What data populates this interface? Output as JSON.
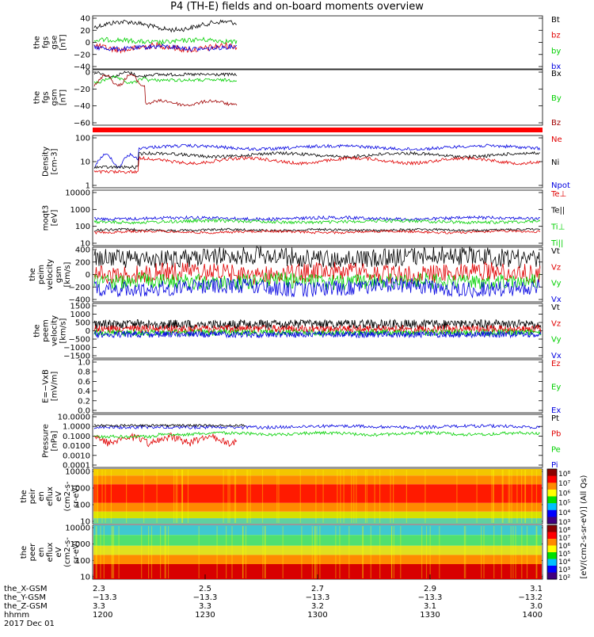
{
  "title": "P4 (TH-E) fields and on-board moments overview",
  "colors": {
    "black": "#000000",
    "red": "#e00000",
    "green": "#00d000",
    "blue": "#0000e0",
    "darkred": "#a00000"
  },
  "panels": [
    {
      "ylabel": [
        "the",
        "fgs",
        "gse",
        "[nT]"
      ],
      "ticks": [
        "40",
        "20",
        "0",
        "−20",
        "−40"
      ],
      "legend": [
        {
          "label": "Bt",
          "color": "#000000"
        },
        {
          "label": "bz",
          "color": "#e00000"
        },
        {
          "label": "by",
          "color": "#00d000"
        },
        {
          "label": "bx",
          "color": "#0000e0"
        }
      ]
    },
    {
      "ylabel": [
        "the",
        "fgs",
        "gsm",
        "[nT]"
      ],
      "ticks": [
        "0",
        "−20",
        "−40",
        "−60"
      ],
      "legend": [
        {
          "label": "Bx",
          "color": "#000000"
        },
        {
          "label": "By",
          "color": "#00d000"
        },
        {
          "label": "Bz",
          "color": "#a00000"
        }
      ]
    },
    {
      "ylabel": [
        "Density",
        "[cm-3]"
      ],
      "ticks": [
        "100",
        "10",
        "1"
      ],
      "legend": [
        {
          "label": "Ne",
          "color": "#e00000"
        },
        {
          "label": "Ni",
          "color": "#000000"
        },
        {
          "label": "Npot",
          "color": "#0000e0"
        }
      ]
    },
    {
      "ylabel": [
        "moqt3",
        "[eV]"
      ],
      "ticks": [
        "10000",
        "1000",
        "100",
        "10"
      ],
      "legend": [
        {
          "label": "Te⊥",
          "color": "#e00000"
        },
        {
          "label": "Te||",
          "color": "#000000"
        },
        {
          "label": "Ti⊥",
          "color": "#00d000"
        },
        {
          "label": "Ti||",
          "color": "#00d000"
        }
      ]
    },
    {
      "ylabel": [
        "the",
        "peim",
        "velocity",
        "gsm",
        "[km/s]"
      ],
      "ticks": [
        "400",
        "200",
        "0",
        "−200",
        "−400"
      ],
      "legend": [
        {
          "label": "Vt",
          "color": "#000000"
        },
        {
          "label": "Vz",
          "color": "#e00000"
        },
        {
          "label": "Vy",
          "color": "#00d000"
        },
        {
          "label": "Vx",
          "color": "#0000e0"
        }
      ]
    },
    {
      "ylabel": [
        "the",
        "peem",
        "velocity",
        "[km/s]"
      ],
      "ticks": [
        "1500",
        "1000",
        "500",
        "0",
        "−500",
        "−1000",
        "−1500"
      ],
      "legend": [
        {
          "label": "Vt",
          "color": "#000000"
        },
        {
          "label": "Vz",
          "color": "#e00000"
        },
        {
          "label": "Vy",
          "color": "#00d000"
        },
        {
          "label": "Vx",
          "color": "#0000e0"
        }
      ]
    },
    {
      "ylabel": [
        "E=−VxB",
        "[mV/m]"
      ],
      "ticks": [
        "1.0",
        "0.8",
        "0.6",
        "0.4",
        "0.2",
        "0.0"
      ],
      "legend": [
        {
          "label": "Ez",
          "color": "#e00000"
        },
        {
          "label": "Ey",
          "color": "#00d000"
        },
        {
          "label": "Ex",
          "color": "#0000e0"
        }
      ]
    },
    {
      "ylabel": [
        "Pressure",
        "[nPa]"
      ],
      "ticks": [
        "10.0000",
        "1.0000",
        "0.1000",
        "0.0100",
        "0.0010",
        "0.0001"
      ],
      "legend": [
        {
          "label": "Pt",
          "color": "#000000"
        },
        {
          "label": "Pb",
          "color": "#e00000"
        },
        {
          "label": "Pe",
          "color": "#00d000"
        },
        {
          "label": "Pi",
          "color": "#0000e0"
        }
      ]
    },
    {
      "ylabel": [
        "the",
        "peir",
        "en",
        "eflux",
        "eV",
        "(cm2-s-",
        "sr-eV)"
      ],
      "ticks": [
        "10000",
        "1000",
        "100",
        "10"
      ]
    },
    {
      "ylabel": [
        "the",
        "peer",
        "en",
        "eflux",
        "eV",
        "(cm2-s-",
        "sr-eV)"
      ],
      "ticks": [
        "10000",
        "1000",
        "100",
        "10"
      ]
    }
  ],
  "colorbar": {
    "ticks": [
      "10⁸",
      "10⁷",
      "10⁶",
      "10⁵",
      "10⁴",
      "10³"
    ],
    "ticks_e": [
      "10⁸",
      "10⁷",
      "10⁶",
      "10⁵",
      "10⁴",
      "10³",
      "10²"
    ],
    "label": "[eV/(cm2-s-sr-eV)] (All Qs)"
  },
  "xaxis": {
    "row_labels": [
      "the_X-GSM",
      "the_Y-GSM",
      "the_Z-GSM",
      "hhmm",
      "2017 Dec 01"
    ],
    "columns": [
      {
        "x": "2.3",
        "y": "−13.3",
        "z": "3.3",
        "t": "1200"
      },
      {
        "x": "2.5",
        "y": "−13.3",
        "z": "3.3",
        "t": "1230"
      },
      {
        "x": "2.7",
        "y": "−13.3",
        "z": "3.2",
        "t": "1300"
      },
      {
        "x": "2.9",
        "y": "−13.3",
        "z": "3.1",
        "t": "1330"
      },
      {
        "x": "3.1",
        "y": "−13.2",
        "z": "3.0",
        "t": "1400"
      }
    ]
  },
  "chart_data": {
    "type": "line",
    "title": "P4 (TH-E) fields and on-board moments overview",
    "x": [
      "1200",
      "1230",
      "1300",
      "1330",
      "1400"
    ],
    "series": [
      {
        "name": "Bt",
        "panel": 1,
        "level": 25
      },
      {
        "name": "bz",
        "panel": 1,
        "level": -10
      },
      {
        "name": "by",
        "panel": 1,
        "level": 0
      },
      {
        "name": "bx",
        "panel": 1,
        "level": -10
      },
      {
        "name": "Bx",
        "panel": 2,
        "level": 3
      },
      {
        "name": "By",
        "panel": 2,
        "level": -5
      },
      {
        "name": "Bz",
        "panel": 2,
        "level": -38
      },
      {
        "name": "Ne",
        "panel": 3,
        "level": 15
      },
      {
        "name": "Ni",
        "panel": 3,
        "level": 25
      },
      {
        "name": "Npot",
        "panel": 3,
        "level": 60
      },
      {
        "name": "Te⊥",
        "panel": 4,
        "level": 60
      },
      {
        "name": "Te||",
        "panel": 4,
        "level": 70
      },
      {
        "name": "Ti⊥",
        "panel": 4,
        "level": 250
      },
      {
        "name": "Ti||",
        "panel": 4,
        "level": 300
      },
      {
        "name": "Vt",
        "panel": 5,
        "level": 250
      },
      {
        "name": "Vz",
        "panel": 5,
        "level": 20
      },
      {
        "name": "Vy",
        "panel": 5,
        "level": -100
      },
      {
        "name": "Vx",
        "panel": 5,
        "level": -180
      },
      {
        "name": "Vt",
        "panel": 6,
        "level": 350
      },
      {
        "name": "Vz",
        "panel": 6,
        "level": 100
      },
      {
        "name": "Vy",
        "panel": 6,
        "level": -100
      },
      {
        "name": "Vx",
        "panel": 6,
        "level": -200
      },
      {
        "name": "Pt",
        "panel": 8,
        "level": 0.8
      },
      {
        "name": "Pb",
        "panel": 8,
        "level": 0.05
      },
      {
        "name": "Pe",
        "panel": 8,
        "level": 0.15
      },
      {
        "name": "Pi",
        "panel": 8,
        "level": 0.6
      }
    ]
  }
}
